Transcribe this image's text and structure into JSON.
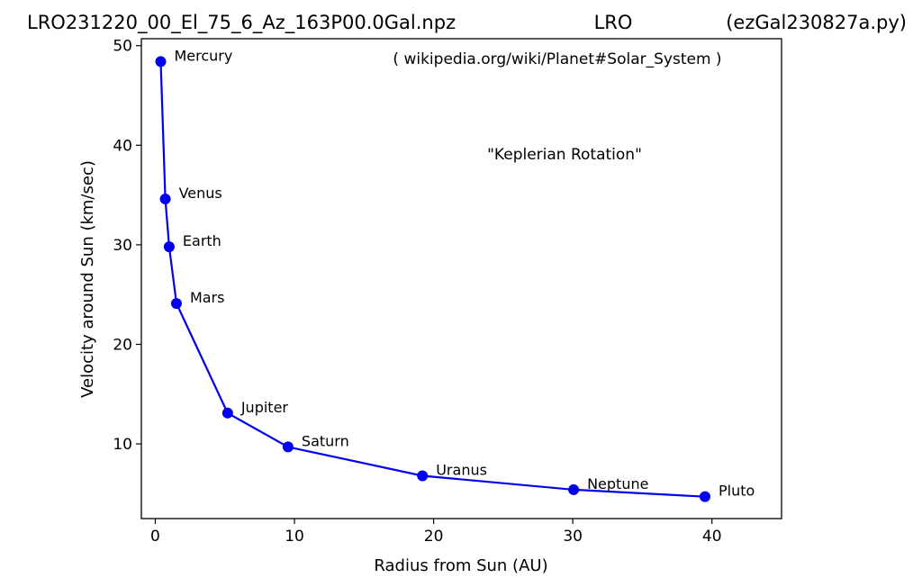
{
  "header": {
    "left": "LRO231220_00_El_75_6_Az_163P00.0Gal.npz",
    "center": "LRO",
    "right": "(ezGal230827a.py)"
  },
  "chart_data": {
    "type": "line",
    "xlabel": "Radius from Sun (AU)",
    "ylabel": "Velocity around Sun (km/sec)",
    "xlim": [
      -1,
      45
    ],
    "ylim": [
      2.5,
      50.7
    ],
    "xticks": [
      0,
      10,
      20,
      30,
      40
    ],
    "yticks": [
      10,
      20,
      30,
      40,
      50
    ],
    "grid": false,
    "legend": "none",
    "line_color": "#0000ee",
    "annotations": [
      "( wikipedia.org/wiki/Planet#Solar_System )",
      "\"Keplerian Rotation\""
    ],
    "points": [
      {
        "label": "Mercury",
        "x": 0.39,
        "y": 48.4
      },
      {
        "label": "Venus",
        "x": 0.72,
        "y": 34.6
      },
      {
        "label": "Earth",
        "x": 1.0,
        "y": 29.8
      },
      {
        "label": "Mars",
        "x": 1.52,
        "y": 24.1
      },
      {
        "label": "Jupiter",
        "x": 5.2,
        "y": 13.1
      },
      {
        "label": "Saturn",
        "x": 9.54,
        "y": 9.7
      },
      {
        "label": "Uranus",
        "x": 19.2,
        "y": 6.8
      },
      {
        "label": "Neptune",
        "x": 30.06,
        "y": 5.4
      },
      {
        "label": "Pluto",
        "x": 39.5,
        "y": 4.7
      }
    ]
  }
}
